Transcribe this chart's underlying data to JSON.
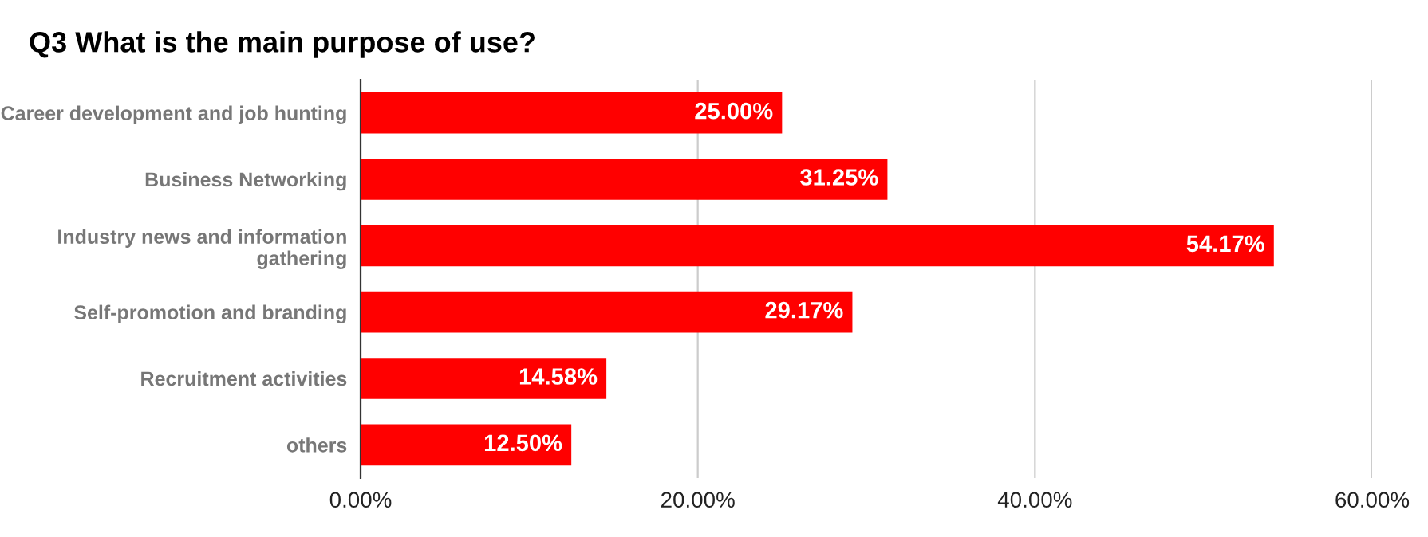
{
  "chart_data": {
    "type": "bar",
    "orientation": "horizontal",
    "title": "Q3 What is the main purpose of use?",
    "categories": [
      "Career development and job hunting",
      "Business Networking",
      "Industry news and information gathering",
      "Self-promotion and branding",
      "Recruitment activities",
      "others"
    ],
    "values": [
      25.0,
      31.25,
      54.17,
      29.17,
      14.58,
      12.5
    ],
    "value_labels": [
      "25.00%",
      "31.25%",
      "54.17%",
      "29.17%",
      "14.58%",
      "12.50%"
    ],
    "color": "#ff0000",
    "xlim": [
      0,
      60
    ],
    "xticks": [
      {
        "value": 0,
        "label": "0.00%"
      },
      {
        "value": 20,
        "label": "20.00%"
      },
      {
        "value": 40,
        "label": "40.00%"
      },
      {
        "value": 60,
        "label": "60.00%"
      }
    ],
    "grid": "x",
    "legend": false
  }
}
